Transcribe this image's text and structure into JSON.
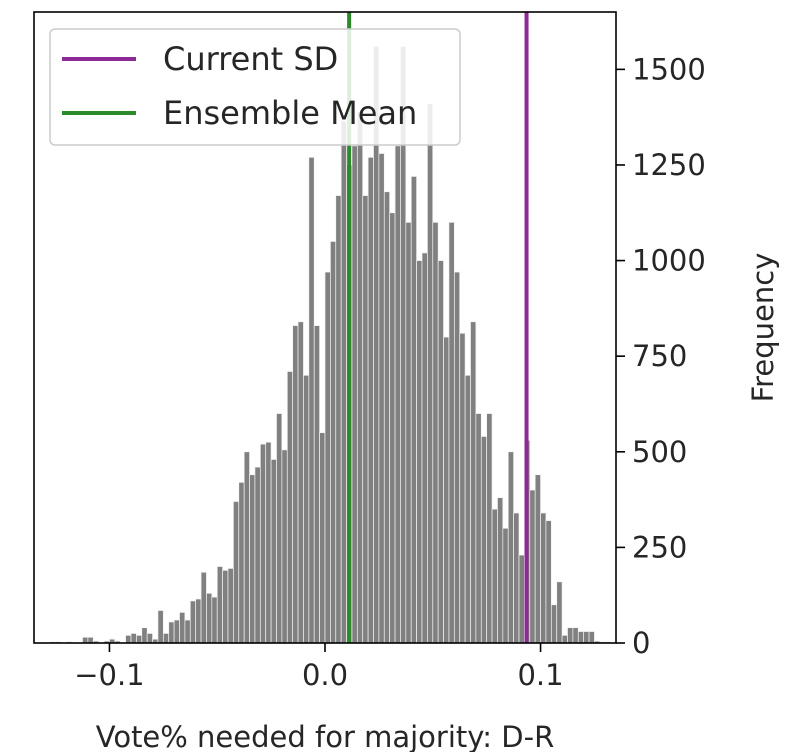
{
  "chart_data": {
    "type": "bar",
    "subtype": "histogram",
    "xlabel": "Vote% needed for majority: D-R",
    "ylabel": "Frequency",
    "yaxis_side": "right",
    "xlim": [
      -0.135,
      0.135
    ],
    "ylim": [
      0,
      1650
    ],
    "xticks": [
      -0.1,
      0.0,
      0.1
    ],
    "xtick_labels": [
      "−0.1",
      "0.0",
      "0.1"
    ],
    "yticks": [
      0,
      250,
      500,
      750,
      1000,
      1250,
      1500
    ],
    "ytick_labels": [
      "0",
      "250",
      "500",
      "750",
      "1000",
      "1250",
      "1500"
    ],
    "grid": false,
    "bin_start": -0.13,
    "bin_width": 0.0025,
    "values": [
      0,
      3,
      3,
      0,
      3,
      0,
      0,
      15,
      15,
      5,
      0,
      5,
      10,
      5,
      0,
      20,
      25,
      20,
      40,
      25,
      10,
      85,
      25,
      55,
      60,
      80,
      60,
      110,
      115,
      185,
      130,
      120,
      200,
      190,
      195,
      370,
      420,
      500,
      440,
      460,
      520,
      525,
      480,
      600,
      505,
      710,
      830,
      840,
      700,
      1270,
      830,
      550,
      970,
      1050,
      1170,
      1365,
      1250,
      1300,
      1390,
      1170,
      1270,
      1560,
      1280,
      1180,
      1125,
      1300,
      1560,
      1100,
      1220,
      1000,
      1020,
      1410,
      1100,
      1000,
      800,
      1100,
      970,
      810,
      700,
      840,
      600,
      540,
      600,
      350,
      380,
      300,
      500,
      340,
      230,
      530,
      400,
      440,
      340,
      320,
      100,
      160,
      20,
      40,
      40,
      30,
      30,
      30,
      5,
      3,
      3,
      0
    ],
    "bar_color": "#808080",
    "vlines": [
      {
        "name": "Current SD",
        "x": 0.0935,
        "color": "#8e2a96"
      },
      {
        "name": "Ensemble Mean",
        "x": 0.0112,
        "color": "#2b8a2b"
      }
    ],
    "legend": {
      "placement": "top-left",
      "entries": [
        {
          "label": "Current SD",
          "color": "#8e2a96"
        },
        {
          "label": "Ensemble Mean",
          "color": "#2b8a2b"
        }
      ]
    }
  }
}
